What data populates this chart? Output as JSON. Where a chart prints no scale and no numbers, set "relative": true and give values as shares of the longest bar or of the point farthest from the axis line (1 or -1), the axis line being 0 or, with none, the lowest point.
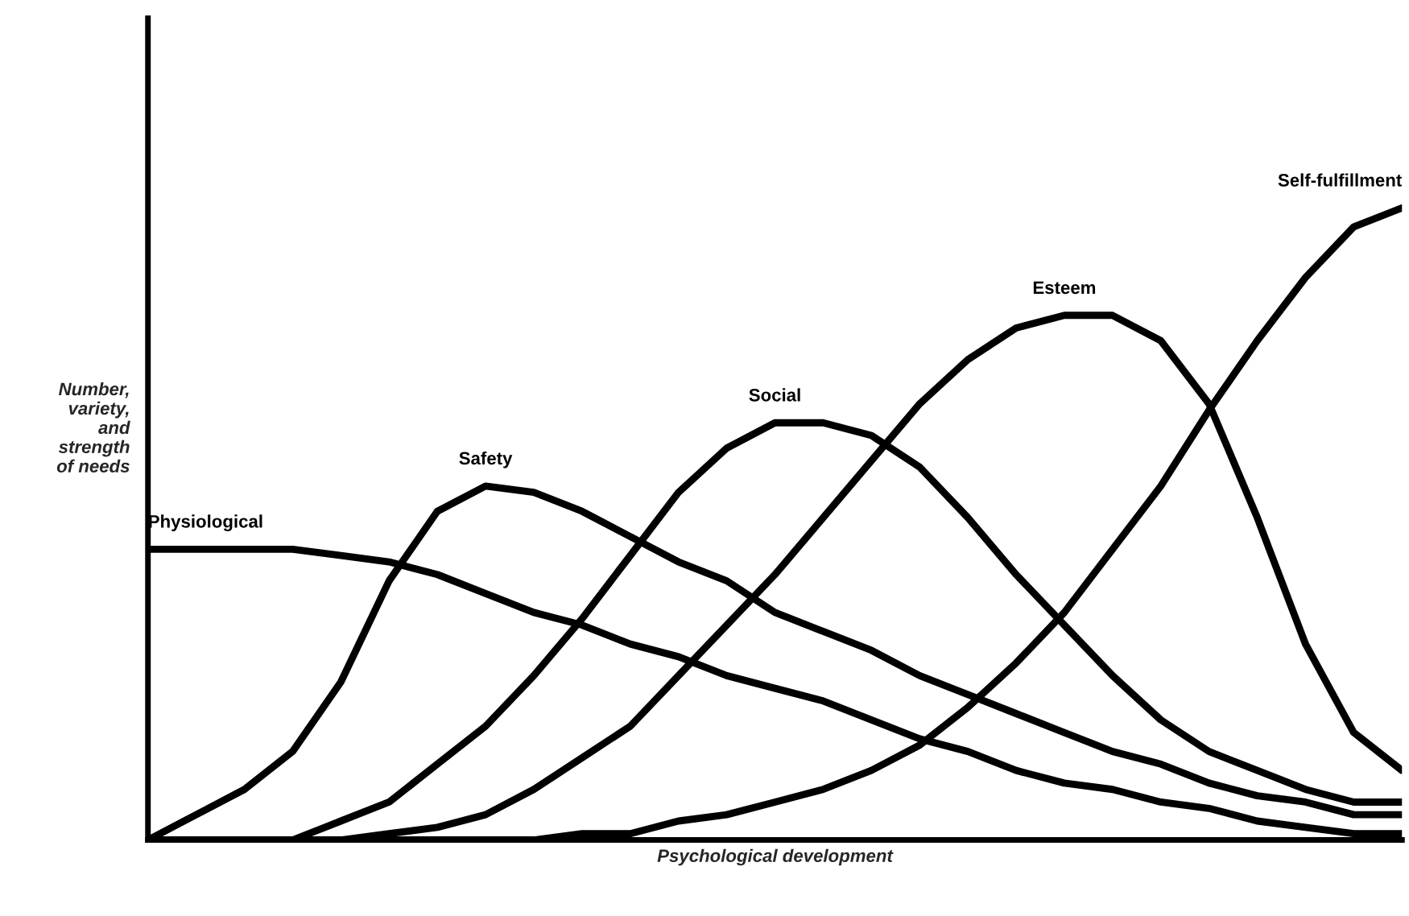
{
  "chart_data": {
    "type": "line",
    "relative": true,
    "xlabel": "Psychological development",
    "ylabel": "Number,\nvariety,\nand\nstrength\nof needs",
    "legend": false,
    "tick_labels": false,
    "marker": "none",
    "line_style": "solid",
    "categories": [
      null,
      null,
      null,
      null,
      null,
      null,
      null,
      null,
      null,
      null,
      null,
      null,
      null,
      null,
      null,
      null,
      null,
      null,
      null,
      null,
      null,
      null,
      null,
      null,
      null,
      null,
      null
    ],
    "series": [
      {
        "name": "Physiological",
        "color": "#000000",
        "values": [
          0.46,
          0.46,
          0.46,
          0.46,
          0.45,
          0.44,
          0.42,
          0.39,
          0.36,
          0.34,
          0.31,
          0.29,
          0.26,
          0.24,
          0.22,
          0.19,
          0.16,
          0.14,
          0.11,
          0.09,
          0.08,
          0.06,
          0.05,
          0.03,
          0.02,
          0.01,
          0.01
        ]
      },
      {
        "name": "Safety",
        "color": "#000000",
        "values": [
          0,
          0.04,
          0.08,
          0.14,
          0.25,
          0.41,
          0.52,
          0.56,
          0.55,
          0.52,
          0.48,
          0.44,
          0.41,
          0.36,
          0.33,
          0.3,
          0.26,
          0.23,
          0.2,
          0.17,
          0.14,
          0.12,
          0.09,
          0.07,
          0.06,
          0.04,
          0.04
        ]
      },
      {
        "name": "Social",
        "color": "#000000",
        "values": [
          0,
          0,
          0,
          0,
          0.03,
          0.06,
          0.12,
          0.18,
          0.26,
          0.35,
          0.45,
          0.55,
          0.62,
          0.66,
          0.66,
          0.64,
          0.59,
          0.51,
          0.42,
          0.34,
          0.26,
          0.19,
          0.14,
          0.11,
          0.08,
          0.06,
          0.06
        ]
      },
      {
        "name": "Esteem",
        "color": "#000000",
        "values": [
          0,
          0,
          0,
          0,
          0,
          0.01,
          0.02,
          0.04,
          0.08,
          0.13,
          0.18,
          0.26,
          0.34,
          0.42,
          0.51,
          0.6,
          0.69,
          0.76,
          0.81,
          0.83,
          0.83,
          0.79,
          0.69,
          0.51,
          0.31,
          0.17,
          0.11
        ]
      },
      {
        "name": "Self-fulfillment",
        "color": "#000000",
        "values": [
          0,
          0,
          0,
          0,
          0,
          0,
          0,
          0,
          0,
          0.01,
          0.01,
          0.03,
          0.04,
          0.06,
          0.08,
          0.11,
          0.15,
          0.21,
          0.28,
          0.36,
          0.46,
          0.56,
          0.68,
          0.79,
          0.89,
          0.97,
          1.0
        ]
      }
    ]
  }
}
